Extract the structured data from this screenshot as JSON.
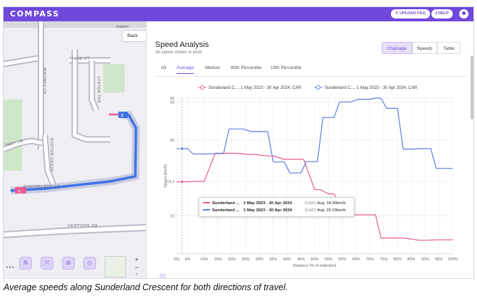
{
  "app": {
    "logo": "COMPASS",
    "upload_label": "UPLOAD FILE",
    "help_label": "HELP"
  },
  "map": {
    "back_label": "Back",
    "attribution": "mapbox",
    "streets": [
      "WHITNEY CR",
      "PARK CT",
      "LYNTON TER",
      "TNEY CR",
      "BOSTON GROVE",
      "SUNDERLAND CR",
      "GRIFFITHS DR"
    ],
    "pin_a": "A",
    "pin_b": "B",
    "tools": [
      "N",
      "⤧",
      "⊘",
      "◇"
    ],
    "more": "•••",
    "zoom_in": "+",
    "zoom_out": "−",
    "compass": "↑"
  },
  "panel": {
    "title": "Speed Analysis",
    "subtitle": "All values shown in km/h",
    "view_tabs": [
      "Chainage",
      "Speeds",
      "Table"
    ],
    "active_view": "Chainage",
    "stat_tabs": [
      "All",
      "Average",
      "Median",
      "85th Percentile",
      "15th Percentile"
    ],
    "active_stat": "Average"
  },
  "tooltip": {
    "rows": [
      {
        "name": "Sunderland ...",
        "period": "1 May 2023 - 30 Apr 2024",
        "tag": "(CAR)",
        "value": "Avg: 18.90km/h",
        "color": "#ea5b91"
      },
      {
        "name": "Sunderland ...",
        "period": "1 May 2023 - 30 Apr 2024",
        "tag": "(CAR)",
        "value": "Avg: 26.03km/h",
        "color": "#5b7fe0"
      }
    ]
  },
  "caption": "Average speeds along Sunderland Crescent for both directions of travel.",
  "chart_data": {
    "type": "line",
    "xlabel": "Distance (% of selection)",
    "ylabel": "Speed (km/h)",
    "x_ticks": [
      "0%",
      "4%",
      "10%",
      "15%",
      "20%",
      "25%",
      "30%",
      "35%",
      "40%",
      "45%",
      "50%",
      "55%",
      "60%",
      "65%",
      "70%",
      "75%",
      "80%",
      "85%",
      "90%",
      "95%",
      "100%"
    ],
    "y_ticks": [
      "10",
      "19.1",
      "30",
      "40",
      "41"
    ],
    "xlim": [
      0,
      100
    ],
    "ylim": [
      0,
      41
    ],
    "grid": true,
    "legend_position": "top",
    "cursor_x": 2,
    "series": [
      {
        "name": "Sunderland C..., 1 May 2023 - 30 Apr 2024, CAR",
        "color": "#ea5b91",
        "x": [
          0,
          2,
          4,
          7,
          10,
          14,
          17,
          20,
          22,
          26,
          28,
          33,
          35,
          39,
          41,
          44,
          46,
          50,
          52,
          55,
          57,
          61,
          63,
          67,
          68,
          70,
          72,
          74,
          76,
          80,
          82,
          88,
          90,
          95,
          97,
          100
        ],
        "y": [
          19,
          19,
          19,
          19.1,
          19.1,
          26.5,
          26.5,
          26.5,
          26.5,
          26.2,
          26.2,
          25.8,
          25.8,
          24.9,
          24.9,
          24.9,
          24.9,
          16.9,
          16.9,
          15.8,
          15.8,
          10.3,
          10.3,
          10.3,
          10.3,
          10.3,
          10.3,
          4.2,
          4.2,
          4.2,
          4.2,
          3.6,
          3.6,
          3.7,
          3.7,
          3.7
        ]
      },
      {
        "name": "Sunderland C..., 1 May 2023 - 30 Apr 2024, CAR",
        "color": "#5b7fe0",
        "x": [
          0,
          2,
          4,
          6,
          8,
          10,
          14,
          17,
          19,
          21,
          24,
          27,
          30,
          33,
          35,
          37,
          39,
          41,
          43,
          45,
          47,
          49,
          51,
          53,
          55,
          57,
          59,
          61,
          63,
          66,
          68,
          70,
          72,
          74,
          76,
          78,
          80,
          82,
          84,
          86,
          88,
          90,
          92,
          94,
          96,
          98,
          100
        ],
        "y": [
          27.7,
          27.7,
          27.7,
          26.3,
          26.3,
          26.3,
          26.4,
          26.4,
          32.9,
          32.9,
          32.9,
          32.2,
          32.2,
          32.2,
          24.2,
          24.2,
          24.2,
          21.3,
          21.3,
          21.3,
          24.3,
          24.3,
          24.3,
          35.9,
          35.9,
          35.9,
          40.0,
          40.0,
          40.0,
          40.7,
          40.7,
          40.7,
          41.0,
          41.0,
          38.3,
          38.3,
          38.3,
          27.6,
          27.6,
          27.6,
          27.7,
          27.7,
          27.7,
          22.5,
          22.5,
          22.5,
          22.5
        ]
      }
    ]
  }
}
